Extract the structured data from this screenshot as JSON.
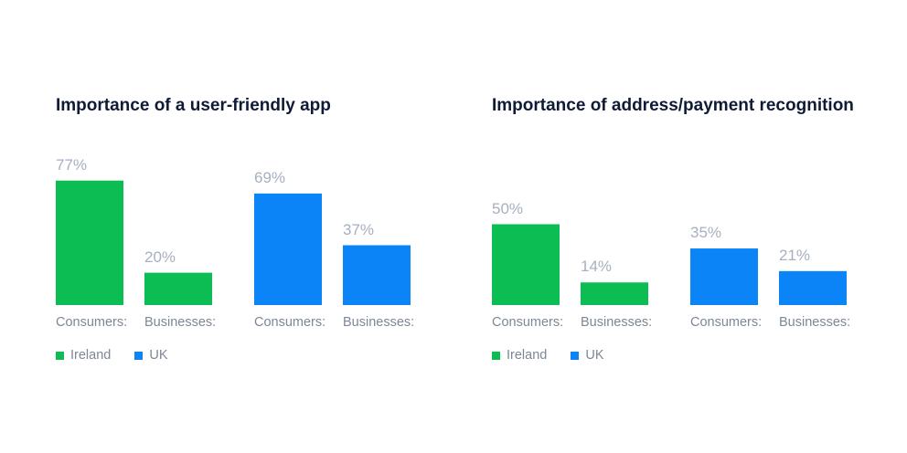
{
  "chart_data": [
    {
      "type": "bar",
      "title": "Importance of a user-friendly app",
      "categories": [
        "Consumers:",
        "Businesses:"
      ],
      "series": [
        {
          "name": "Ireland",
          "color": "#0bbd52",
          "values": [
            77,
            20
          ],
          "labels": [
            "77%",
            "20%"
          ]
        },
        {
          "name": "UK",
          "color": "#0a84f6",
          "values": [
            69,
            37
          ],
          "labels": [
            "69%",
            "37%"
          ]
        }
      ],
      "ylim": [
        0,
        100
      ],
      "legend": "bottom-left",
      "grid": false
    },
    {
      "type": "bar",
      "title": "Importance of address/payment recognition",
      "categories": [
        "Consumers:",
        "Businesses:"
      ],
      "series": [
        {
          "name": "Ireland",
          "color": "#0bbd52",
          "values": [
            50,
            14
          ],
          "labels": [
            "50%",
            "14%"
          ]
        },
        {
          "name": "UK",
          "color": "#0a84f6",
          "values": [
            35,
            21
          ],
          "labels": [
            "35%",
            "21%"
          ]
        }
      ],
      "ylim": [
        0,
        100
      ],
      "legend": "bottom-left",
      "grid": false
    }
  ]
}
